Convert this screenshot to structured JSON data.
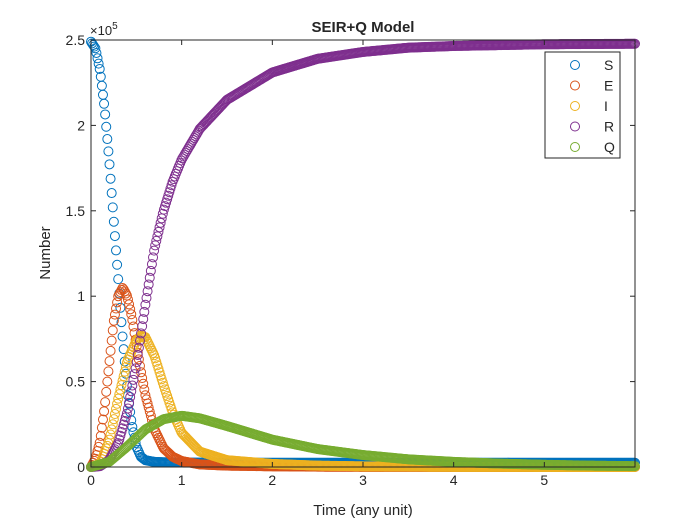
{
  "chart_data": {
    "type": "scatter",
    "title": "SEIR+Q Model",
    "xlabel": "Time (any unit)",
    "ylabel": "Number",
    "xlim": [
      0,
      6
    ],
    "ylim": [
      0,
      250000
    ],
    "y_exponent_label": "×10",
    "y_exponent_power": "5",
    "xticks": [
      0,
      1,
      2,
      3,
      4,
      5
    ],
    "xtick_labels": [
      "0",
      "1",
      "2",
      "3",
      "4",
      "5"
    ],
    "yticks": [
      0,
      50000,
      100000,
      150000,
      200000,
      250000
    ],
    "ytick_labels": [
      "0",
      "0.5",
      "1",
      "1.5",
      "2",
      "2.5"
    ],
    "grid": false,
    "legend_position": "top-right",
    "marker": "open-circle",
    "series": [
      {
        "name": "S",
        "color": "#0072BD",
        "x": [
          0,
          0.05,
          0.1,
          0.15,
          0.2,
          0.25,
          0.3,
          0.35,
          0.4,
          0.45,
          0.5,
          0.55,
          0.6,
          0.7,
          0.8,
          1.0,
          1.5,
          2.0,
          3.0,
          4.0,
          5.0,
          6.0
        ],
        "y": [
          249000,
          245000,
          232000,
          210000,
          180000,
          145000,
          110000,
          75000,
          45000,
          25000,
          12000,
          6000,
          4000,
          3000,
          2800,
          2600,
          2500,
          2500,
          2500,
          2500,
          2500,
          2500
        ]
      },
      {
        "name": "E",
        "color": "#D95319",
        "x": [
          0,
          0.05,
          0.1,
          0.15,
          0.2,
          0.25,
          0.3,
          0.35,
          0.4,
          0.45,
          0.5,
          0.55,
          0.6,
          0.7,
          0.8,
          0.9,
          1.0,
          1.2,
          1.5,
          2.0,
          2.5,
          3.0,
          4.0,
          5.0,
          6.0
        ],
        "y": [
          0,
          5000,
          15000,
          35000,
          60000,
          85000,
          100000,
          105000,
          100000,
          88000,
          72000,
          56000,
          42000,
          22000,
          11000,
          6000,
          3500,
          1500,
          800,
          400,
          200,
          100,
          50,
          20,
          0
        ]
      },
      {
        "name": "I",
        "color": "#EDB120",
        "x": [
          0,
          0.1,
          0.2,
          0.3,
          0.4,
          0.5,
          0.55,
          0.6,
          0.7,
          0.8,
          0.9,
          1.0,
          1.2,
          1.5,
          2.0,
          2.5,
          3.0,
          4.0,
          5.0,
          6.0
        ],
        "y": [
          0,
          2000,
          15000,
          40000,
          62000,
          74000,
          77000,
          76000,
          65000,
          48000,
          32000,
          20000,
          9000,
          4000,
          1800,
          800,
          400,
          100,
          30,
          0
        ]
      },
      {
        "name": "R",
        "color": "#7E2F8E",
        "x": [
          0,
          0.1,
          0.2,
          0.3,
          0.4,
          0.5,
          0.6,
          0.7,
          0.8,
          0.9,
          1.0,
          1.2,
          1.5,
          2.0,
          2.5,
          3.0,
          3.5,
          4.0,
          5.0,
          6.0
        ],
        "y": [
          0,
          500,
          4000,
          14000,
          32000,
          60000,
          95000,
          128000,
          150000,
          167000,
          180000,
          198000,
          215000,
          231000,
          239000,
          243000,
          245500,
          246500,
          247500,
          247800
        ]
      },
      {
        "name": "Q",
        "color": "#77AC30",
        "x": [
          0,
          0.2,
          0.4,
          0.6,
          0.8,
          1.0,
          1.2,
          1.5,
          2.0,
          2.5,
          3.0,
          3.5,
          4.0,
          4.5,
          5.0,
          5.5,
          6.0
        ],
        "y": [
          0,
          3000,
          12000,
          22000,
          28000,
          30000,
          28500,
          24000,
          16000,
          10500,
          7000,
          4500,
          3000,
          2000,
          1300,
          800,
          500
        ]
      }
    ]
  }
}
